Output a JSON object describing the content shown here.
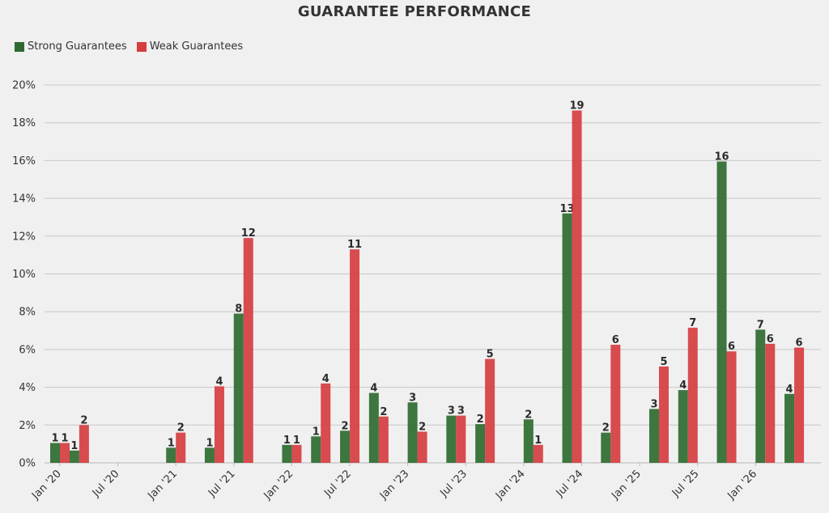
{
  "chart_data": {
    "type": "bar",
    "title": "GUARANTEE PERFORMANCE",
    "ylim": [
      0,
      20
    ],
    "yticks": [
      "0%",
      "2%",
      "4%",
      "6%",
      "8%",
      "10%",
      "12%",
      "14%",
      "16%",
      "18%",
      "20%"
    ],
    "xtick_labels": [
      "Jan '20",
      "Jul '20",
      "Jan '21",
      "Jul '21",
      "Jan '22",
      "Jul '22",
      "Jan '23",
      "Jul '23",
      "Jan '24",
      "Jul '24",
      "Jan '25",
      "Jul '25",
      "Jan '26"
    ],
    "legend_position": "top-left",
    "grid": true,
    "series": [
      {
        "name": "Strong Guarantees",
        "color": "#2e6b30",
        "points": [
          {
            "date": "2020-01",
            "pct": 1.05,
            "count": 1
          },
          {
            "date": "2020-03",
            "pct": 0.65,
            "count": 1
          },
          {
            "date": "2021-01",
            "pct": 0.8,
            "count": 1
          },
          {
            "date": "2021-05",
            "pct": 0.8,
            "count": 1
          },
          {
            "date": "2021-08",
            "pct": 7.9,
            "count": 8
          },
          {
            "date": "2022-01",
            "pct": 0.95,
            "count": 1
          },
          {
            "date": "2022-04",
            "pct": 1.4,
            "count": 1
          },
          {
            "date": "2022-07",
            "pct": 1.7,
            "count": 2
          },
          {
            "date": "2022-10",
            "pct": 3.7,
            "count": 4
          },
          {
            "date": "2023-02",
            "pct": 3.2,
            "count": 3
          },
          {
            "date": "2023-06",
            "pct": 2.5,
            "count": 3
          },
          {
            "date": "2023-09",
            "pct": 2.05,
            "count": 2
          },
          {
            "date": "2024-02",
            "pct": 2.3,
            "count": 2
          },
          {
            "date": "2024-06",
            "pct": 13.2,
            "count": 13
          },
          {
            "date": "2024-10",
            "pct": 1.6,
            "count": 2
          },
          {
            "date": "2025-03",
            "pct": 2.85,
            "count": 3
          },
          {
            "date": "2025-06",
            "pct": 3.85,
            "count": 4
          },
          {
            "date": "2025-10",
            "pct": 15.95,
            "count": 16
          },
          {
            "date": "2026-02",
            "pct": 7.05,
            "count": 7
          },
          {
            "date": "2026-05",
            "pct": 3.65,
            "count": 4
          }
        ]
      },
      {
        "name": "Weak Guarantees",
        "color": "#d63d40",
        "points": [
          {
            "date": "2020-01",
            "pct": 1.05,
            "count": 1
          },
          {
            "date": "2020-03",
            "pct": 2.0,
            "count": 2
          },
          {
            "date": "2021-01",
            "pct": 1.6,
            "count": 2
          },
          {
            "date": "2021-05",
            "pct": 4.05,
            "count": 4
          },
          {
            "date": "2021-08",
            "pct": 11.9,
            "count": 12
          },
          {
            "date": "2022-01",
            "pct": 0.95,
            "count": 1
          },
          {
            "date": "2022-04",
            "pct": 4.2,
            "count": 4
          },
          {
            "date": "2022-07",
            "pct": 11.3,
            "count": 11
          },
          {
            "date": "2022-10",
            "pct": 2.45,
            "count": 2
          },
          {
            "date": "2023-02",
            "pct": 1.65,
            "count": 2
          },
          {
            "date": "2023-06",
            "pct": 2.5,
            "count": 3
          },
          {
            "date": "2023-09",
            "pct": 5.5,
            "count": 5
          },
          {
            "date": "2024-02",
            "pct": 0.95,
            "count": 1
          },
          {
            "date": "2024-06",
            "pct": 18.65,
            "count": 19
          },
          {
            "date": "2024-10",
            "pct": 6.25,
            "count": 6
          },
          {
            "date": "2025-03",
            "pct": 5.1,
            "count": 5
          },
          {
            "date": "2025-06",
            "pct": 7.15,
            "count": 7
          },
          {
            "date": "2025-10",
            "pct": 5.9,
            "count": 6
          },
          {
            "date": "2026-02",
            "pct": 6.3,
            "count": 6
          },
          {
            "date": "2026-05",
            "pct": 6.1,
            "count": 6
          }
        ]
      }
    ]
  }
}
